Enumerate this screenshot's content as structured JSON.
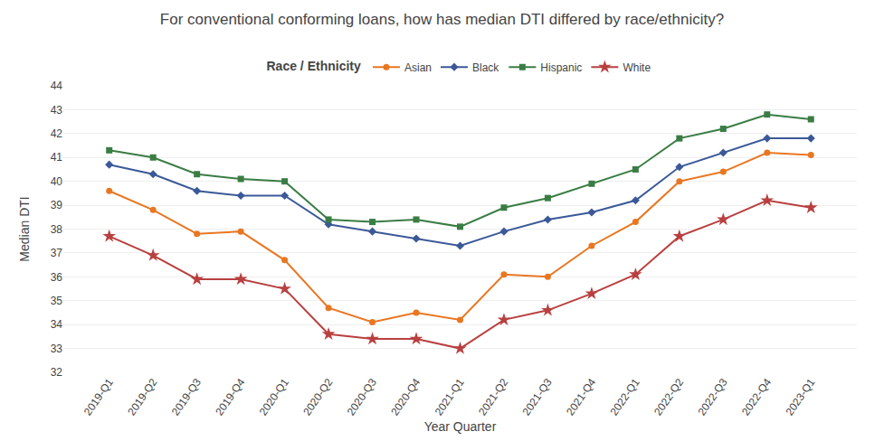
{
  "chart_data": {
    "type": "line",
    "title": "For conventional conforming loans, how has median DTI differed by race/ethnicity?",
    "x_label": "Year Quarter",
    "y_label": "Median DTI",
    "legend_title": "Race / Ethnicity",
    "categories": [
      "2019-Q1",
      "2019-Q2",
      "2019-Q3",
      "2019-Q4",
      "2020-Q1",
      "2020-Q2",
      "2020-Q3",
      "2020-Q4",
      "2021-Q1",
      "2021-Q2",
      "2021-Q3",
      "2021-Q4",
      "2022-Q1",
      "2022-Q2",
      "2022-Q3",
      "2022-Q4",
      "2023-Q1"
    ],
    "series": [
      {
        "name": "Asian",
        "color": "#E87722",
        "marker": "circle",
        "values": [
          39.6,
          38.8,
          37.8,
          37.9,
          36.7,
          34.7,
          34.1,
          34.5,
          34.2,
          36.1,
          36.0,
          37.3,
          38.3,
          40.0,
          40.4,
          41.2,
          41.1
        ]
      },
      {
        "name": "Black",
        "color": "#3B5998",
        "marker": "diamond",
        "values": [
          40.7,
          40.3,
          39.6,
          39.4,
          39.4,
          38.2,
          37.9,
          37.6,
          37.3,
          37.9,
          38.4,
          38.7,
          39.2,
          40.6,
          41.2,
          41.8,
          41.8
        ]
      },
      {
        "name": "Hispanic",
        "color": "#3A7D44",
        "marker": "square",
        "values": [
          41.3,
          41.0,
          40.3,
          40.1,
          40.0,
          38.4,
          38.3,
          38.4,
          38.1,
          38.9,
          39.3,
          39.9,
          40.5,
          41.8,
          42.2,
          42.8,
          42.6
        ]
      },
      {
        "name": "White",
        "color": "#B94040",
        "marker": "star",
        "values": [
          37.7,
          36.9,
          35.9,
          35.9,
          35.5,
          33.6,
          33.4,
          33.4,
          33.0,
          34.2,
          34.6,
          35.3,
          36.1,
          37.7,
          38.4,
          39.2,
          38.9
        ]
      }
    ],
    "ylim": [
      32,
      44
    ],
    "yticks": [
      32,
      33,
      34,
      35,
      36,
      37,
      38,
      39,
      40,
      41,
      42,
      43,
      44
    ],
    "grid": "y",
    "legend": "top"
  }
}
